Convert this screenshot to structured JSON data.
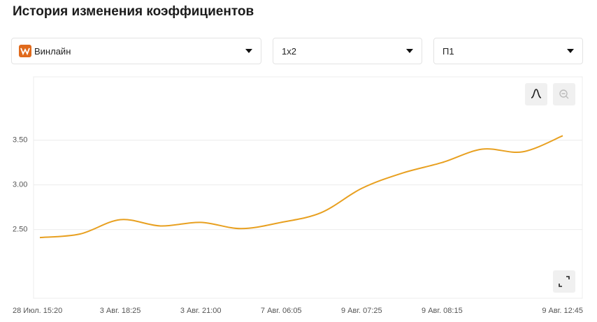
{
  "header": {
    "title": "История изменения коэффициентов"
  },
  "filters": [
    "Винлайн",
    "1x2",
    "П1"
  ],
  "chart_data": {
    "type": "line",
    "categories": [
      "28 Июл. 15:20",
      null,
      "3 Авг. 18:25",
      null,
      "3 Авг. 21:00",
      null,
      "7 Авг. 06:05",
      null,
      "9 Авг. 07:25",
      null,
      "9 Авг. 08:15",
      null,
      null,
      "9 Авг. 12:45"
    ],
    "series": [
      {
        "color": "#e8a020",
        "values": [
          2.41,
          2.45,
          2.61,
          2.54,
          2.58,
          2.51,
          2.58,
          2.69,
          2.96,
          3.13,
          3.25,
          3.4,
          3.37,
          3.55
        ]
      }
    ],
    "ylim": [
      1.73,
      4.21
    ],
    "yticks": [
      {
        "value": 2.5,
        "label": "2.50"
      },
      {
        "value": 3.0,
        "label": "3.00"
      },
      {
        "value": 3.5,
        "label": "3.50"
      }
    ],
    "grid": true
  }
}
